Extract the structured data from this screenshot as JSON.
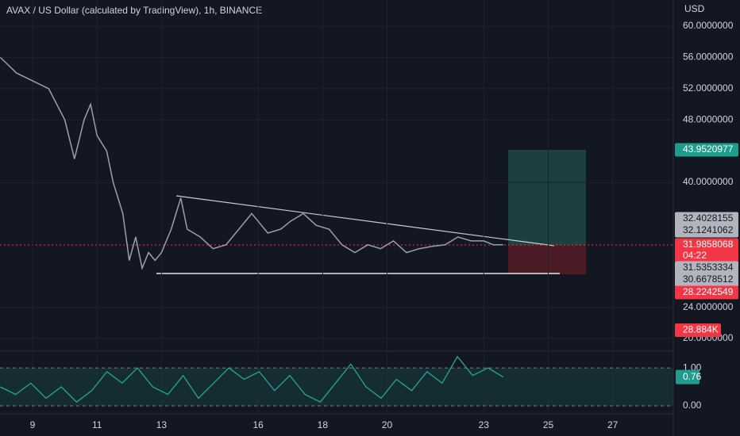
{
  "header": {
    "title": "AVAX / US Dollar (calculated by TradingView), 1h, BINANCE",
    "currency": "USD"
  },
  "chart_data": {
    "type": "line",
    "color": "#9aa0aa",
    "x": [
      8.0,
      8.5,
      9,
      9.5,
      10,
      10.3,
      10.6,
      10.8,
      11,
      11.3,
      11.5,
      11.8,
      12,
      12.2,
      12.4,
      12.6,
      12.8,
      13,
      13.3,
      13.6,
      13.8,
      14.2,
      14.6,
      15,
      15.4,
      15.8,
      16,
      16.3,
      16.7,
      17,
      17.4,
      17.8,
      18.2,
      18.6,
      19,
      19.4,
      19.8,
      20.2,
      20.6,
      21,
      21.4,
      21.8,
      22.2,
      22.6,
      23,
      23.3,
      23.6
    ],
    "values": [
      56,
      54,
      53,
      52,
      48,
      43,
      48,
      50,
      46,
      44,
      40,
      36,
      30,
      33,
      29,
      31,
      30,
      31,
      34,
      38,
      34,
      33,
      31.5,
      32,
      34,
      36,
      35,
      33.5,
      34,
      35,
      36,
      34.5,
      34,
      32,
      31,
      32,
      31.5,
      32.5,
      31,
      31.5,
      31.8,
      32,
      33,
      32.5,
      32.5,
      32,
      32
    ],
    "xlim": [
      7.99,
      28.88
    ],
    "ylim": [
      18.68,
      63.35
    ],
    "yticks": [
      {
        "value": 60,
        "label": "60.0000000"
      },
      {
        "value": 56,
        "label": "56.0000000"
      },
      {
        "value": 52,
        "label": "52.0000000"
      },
      {
        "value": 48,
        "label": "48.0000000"
      },
      {
        "value": 40,
        "label": "40.0000000"
      },
      {
        "value": 24,
        "label": "24.0000000"
      },
      {
        "value": 20,
        "label": "20.0000000"
      }
    ],
    "xticks": [
      9,
      11,
      13,
      16,
      18,
      20,
      23,
      25,
      27
    ],
    "grid": true
  },
  "price_tags": {
    "values": [
      43.9520977,
      32.4028155,
      32.1241062,
      31.9858068,
      31.5353334,
      30.6678512,
      28.2242549
    ],
    "colors": [
      "#1e9c8c",
      "#b2b5be",
      "#b2b5be",
      "#f23645",
      "#b2b5be",
      "#b2b5be",
      "#f23645"
    ],
    "countdown": "04:22",
    "volume": {
      "value": 28884,
      "label": "28.884K"
    }
  },
  "oscillator": {
    "color": "#26a69a",
    "values": [
      0.5,
      0.3,
      0.6,
      0.2,
      0.5,
      0.1,
      0.4,
      0.9,
      0.6,
      1.0,
      0.5,
      0.3,
      0.8,
      0.2,
      0.6,
      1.0,
      0.7,
      0.9,
      0.4,
      0.8,
      0.3,
      0.1,
      0.6,
      1.1,
      0.5,
      0.2,
      0.7,
      0.4,
      0.9,
      0.6,
      1.3,
      0.8,
      1.0,
      0.76
    ],
    "ylim": [
      -0.21,
      1.4
    ],
    "yticks": [
      {
        "value": 1,
        "label": "1.00"
      },
      {
        "value": 0,
        "label": "0.00"
      }
    ],
    "current": {
      "value": 0.76,
      "label": "0.76"
    }
  }
}
